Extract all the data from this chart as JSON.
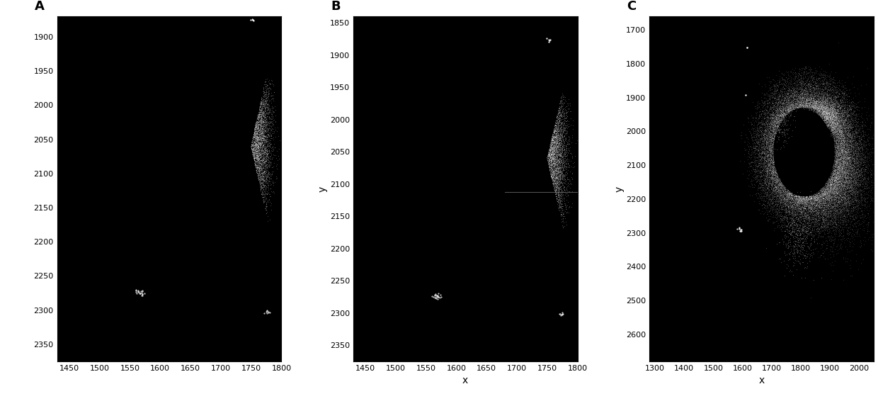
{
  "panels": [
    {
      "label": "A",
      "xlim": [
        1430,
        1800
      ],
      "ylim": [
        2375,
        1870
      ],
      "xticks": [
        1450,
        1500,
        1550,
        1600,
        1650,
        1700,
        1750,
        1800
      ],
      "yticks": [
        1900,
        1950,
        2000,
        2050,
        2100,
        2150,
        2200,
        2250,
        2300,
        2350
      ],
      "xlabel": "",
      "ylabel": "",
      "has_ylabel": false,
      "has_xlabel": false
    },
    {
      "label": "B",
      "xlim": [
        1430,
        1800
      ],
      "ylim": [
        2375,
        1840
      ],
      "xticks": [
        1450,
        1500,
        1550,
        1600,
        1650,
        1700,
        1750,
        1800
      ],
      "yticks": [
        1850,
        1900,
        1950,
        2000,
        2050,
        2100,
        2150,
        2200,
        2250,
        2300,
        2350
      ],
      "xlabel": "x",
      "ylabel": "y",
      "has_ylabel": true,
      "has_xlabel": true,
      "hline_y": 2113,
      "hline_xstart": 1680,
      "hline_xend": 1800
    },
    {
      "label": "C",
      "xlim": [
        1280,
        2050
      ],
      "ylim": [
        2680,
        1660
      ],
      "xticks": [
        1300,
        1400,
        1500,
        1600,
        1700,
        1800,
        1900,
        2000
      ],
      "yticks": [
        1700,
        1800,
        1900,
        2000,
        2100,
        2200,
        2300,
        2400,
        2500,
        2600
      ],
      "xlabel": "x",
      "ylabel": "y",
      "has_ylabel": true,
      "has_xlabel": true
    }
  ],
  "fig_bg_color": "#ffffff",
  "plot_bg_color": "#000000",
  "point_color": "#ffffff",
  "spine_color": "#000000",
  "label_fontsize": 10,
  "tick_fontsize": 8,
  "panel_label_fontsize": 13
}
